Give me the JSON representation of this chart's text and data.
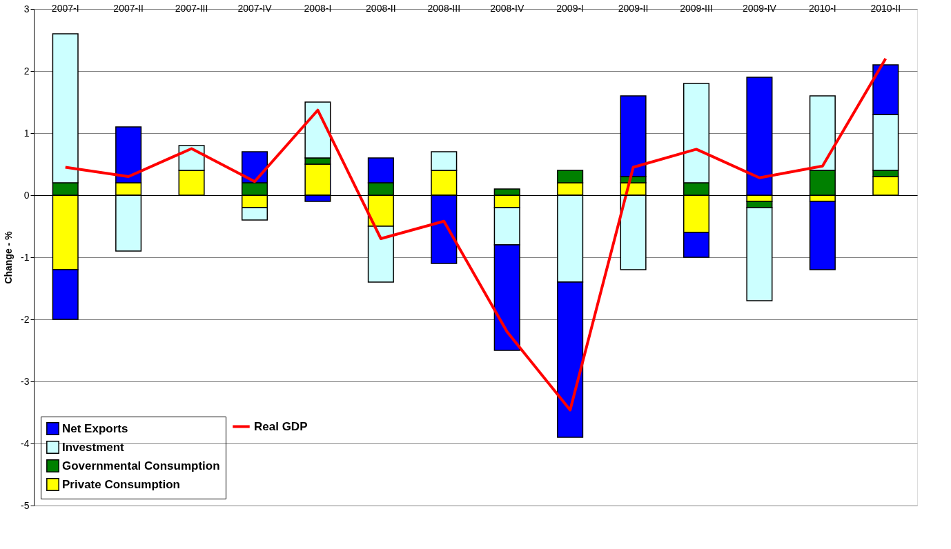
{
  "chart_data": {
    "type": "bar",
    "stacked": true,
    "ylabel": "Change - %",
    "categories": [
      "2007-I",
      "2007-II",
      "2007-III",
      "2007-IV",
      "2008-I",
      "2008-II",
      "2008-III",
      "2008-IV",
      "2009-I",
      "2009-II",
      "2009-III",
      "2009-IV",
      "2010-I",
      "2010-II"
    ],
    "series": [
      {
        "name": "Private Consumption",
        "color": "#ffff00",
        "values": [
          -1.2,
          0.2,
          0.4,
          -0.2,
          0.5,
          -0.5,
          0.4,
          -0.2,
          0.2,
          0.2,
          -0.6,
          -0.1,
          -0.1,
          0.3
        ]
      },
      {
        "name": "Governmental Consumption",
        "color": "#008000",
        "values": [
          0.2,
          null,
          null,
          0.2,
          0.1,
          0.2,
          null,
          0.1,
          0.2,
          0.1,
          0.2,
          -0.1,
          0.4,
          0.1
        ]
      },
      {
        "name": "Investment",
        "color": "#ccffff",
        "values": [
          2.4,
          -0.9,
          0.4,
          -0.2,
          0.9,
          -0.9,
          0.3,
          -0.6,
          -1.4,
          -1.2,
          1.6,
          -1.5,
          1.2,
          0.9
        ]
      },
      {
        "name": "Net Exports",
        "color": "#0000ff",
        "values": [
          -0.8,
          0.9,
          null,
          0.5,
          -0.1,
          0.4,
          -1.1,
          -1.7,
          -2.5,
          1.3,
          -0.4,
          1.9,
          -1.1,
          0.8
        ]
      },
      {
        "name": "Real GDP",
        "type": "line",
        "color": "#ff0000",
        "values": [
          0.45,
          0.3,
          0.75,
          0.22,
          1.37,
          -0.7,
          -0.42,
          -2.2,
          -3.46,
          0.45,
          0.74,
          0.28,
          0.47,
          2.2
        ]
      }
    ],
    "ylim": [
      -5,
      3
    ],
    "yticks": [
      -5,
      -4,
      -3,
      -2,
      -1,
      0,
      1,
      2,
      3
    ],
    "grid": "y",
    "legend": "bottom left"
  }
}
